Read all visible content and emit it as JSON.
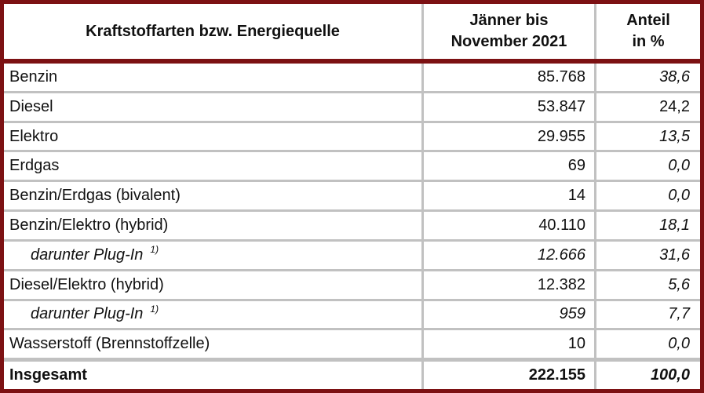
{
  "colors": {
    "border_maroon": "#7c1113",
    "grid_gray": "#c1c1c1",
    "text": "#111111",
    "background": "#ffffff"
  },
  "table": {
    "header": {
      "fuel_type_label": "Kraftstoffarten bzw. Energiequelle",
      "period_line1": "Jänner bis",
      "period_line2": "November 2021",
      "share_line1": "Anteil",
      "share_line2": "in %"
    },
    "rows": [
      {
        "label": "Benzin",
        "sup": "",
        "value": "85.768",
        "share": "38,6",
        "indent": false,
        "italic": false,
        "share_italic": true,
        "bold": false
      },
      {
        "label": "Diesel",
        "sup": "",
        "value": "53.847",
        "share": "24,2",
        "indent": false,
        "italic": false,
        "share_italic": false,
        "bold": false
      },
      {
        "label": "Elektro",
        "sup": "",
        "value": "29.955",
        "share": "13,5",
        "indent": false,
        "italic": false,
        "share_italic": true,
        "bold": false
      },
      {
        "label": "Erdgas",
        "sup": "",
        "value": "69",
        "share": "0,0",
        "indent": false,
        "italic": false,
        "share_italic": true,
        "bold": false
      },
      {
        "label": "Benzin/Erdgas (bivalent)",
        "sup": "",
        "value": "14",
        "share": "0,0",
        "indent": false,
        "italic": false,
        "share_italic": true,
        "bold": false
      },
      {
        "label": "Benzin/Elektro (hybrid)",
        "sup": "",
        "value": "40.110",
        "share": "18,1",
        "indent": false,
        "italic": false,
        "share_italic": true,
        "bold": false
      },
      {
        "label": "darunter Plug-In",
        "sup": "1)",
        "value": "12.666",
        "share": "31,6",
        "indent": true,
        "italic": true,
        "share_italic": true,
        "bold": false
      },
      {
        "label": "Diesel/Elektro (hybrid)",
        "sup": "",
        "value": "12.382",
        "share": "5,6",
        "indent": false,
        "italic": false,
        "share_italic": true,
        "bold": false
      },
      {
        "label": "darunter Plug-In",
        "sup": "1)",
        "value": "959",
        "share": "7,7",
        "indent": true,
        "italic": true,
        "share_italic": true,
        "bold": false
      },
      {
        "label": "Wasserstoff (Brennstoffzelle)",
        "sup": "",
        "value": "10",
        "share": "0,0",
        "indent": false,
        "italic": false,
        "share_italic": true,
        "bold": false
      },
      {
        "label": "Insgesamt",
        "sup": "",
        "value": "222.155",
        "share": "100,0",
        "indent": false,
        "italic": false,
        "share_italic": true,
        "bold": true
      }
    ]
  },
  "chart_data": {
    "type": "table",
    "columns": [
      "Kraftstoffarten bzw. Energiequelle",
      "Jänner bis November 2021",
      "Anteil in %"
    ],
    "rows": [
      [
        "Benzin",
        85768,
        38.6
      ],
      [
        "Diesel",
        53847,
        24.2
      ],
      [
        "Elektro",
        29955,
        13.5
      ],
      [
        "Erdgas",
        69,
        0.0
      ],
      [
        "Benzin/Erdgas (bivalent)",
        14,
        0.0
      ],
      [
        "Benzin/Elektro (hybrid)",
        40110,
        18.1
      ],
      [
        "darunter Plug-In 1)",
        12666,
        31.6
      ],
      [
        "Diesel/Elektro (hybrid)",
        12382,
        5.6
      ],
      [
        "darunter Plug-In 1)",
        959,
        7.7
      ],
      [
        "Wasserstoff (Brennstoffzelle)",
        10,
        0.0
      ],
      [
        "Insgesamt",
        222155,
        100.0
      ]
    ],
    "notes": "darunter Plug-In rows are subsets marked with footnote 1); Anteil column is italic; Insgesamt is the bold total row"
  }
}
